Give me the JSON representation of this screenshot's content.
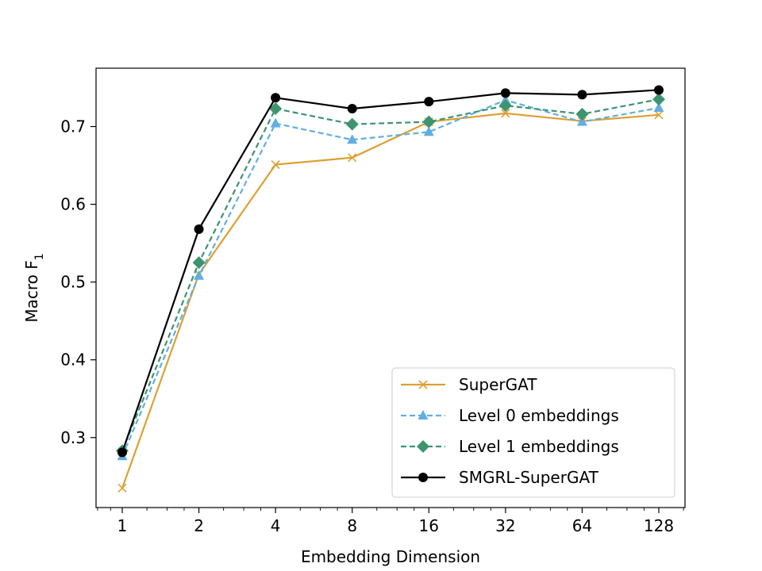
{
  "chart_data": {
    "type": "line",
    "xlabel": "Embedding Dimension",
    "ylabel": "Macro F",
    "ylabel_subscript": "1",
    "x_scale": "log2",
    "x": [
      1,
      2,
      4,
      8,
      16,
      32,
      64,
      128
    ],
    "xtick_labels": [
      "1",
      "2",
      "4",
      "8",
      "16",
      "32",
      "64",
      "128"
    ],
    "ylim": [
      0.21,
      0.775
    ],
    "yticks": [
      0.3,
      0.4,
      0.5,
      0.6,
      0.7
    ],
    "ytick_labels": [
      "0.3",
      "0.4",
      "0.5",
      "0.6",
      "0.7"
    ],
    "grid": false,
    "legend_position": "lower-right",
    "series": [
      {
        "name": "SuperGAT",
        "color": "#DDA033",
        "dash": "solid",
        "marker": "x",
        "values": [
          0.235,
          0.51,
          0.651,
          0.66,
          0.706,
          0.717,
          0.707,
          0.715
        ]
      },
      {
        "name": "Level 0 embeddings",
        "color": "#62AEE0",
        "dash": "dashed",
        "marker": "triangle",
        "values": [
          0.276,
          0.508,
          0.704,
          0.683,
          0.693,
          0.734,
          0.706,
          0.724
        ]
      },
      {
        "name": "Level 1 embeddings",
        "color": "#3D9470",
        "dash": "dashed",
        "marker": "diamond",
        "values": [
          0.283,
          0.525,
          0.723,
          0.703,
          0.706,
          0.727,
          0.716,
          0.735
        ]
      },
      {
        "name": "SMGRL-SuperGAT",
        "color": "#000000",
        "dash": "solid",
        "marker": "circle",
        "values": [
          0.281,
          0.568,
          0.737,
          0.723,
          0.732,
          0.743,
          0.741,
          0.747
        ]
      }
    ]
  }
}
